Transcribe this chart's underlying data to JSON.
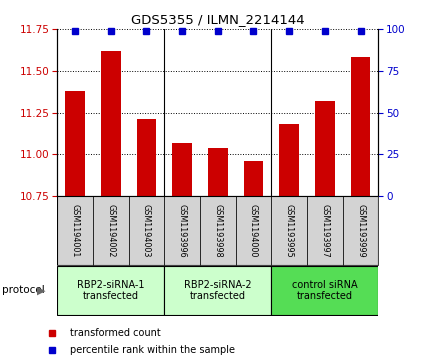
{
  "title": "GDS5355 / ILMN_2214144",
  "samples": [
    "GSM1194001",
    "GSM1194002",
    "GSM1194003",
    "GSM1193996",
    "GSM1193998",
    "GSM1194000",
    "GSM1193995",
    "GSM1193997",
    "GSM1193999"
  ],
  "bar_values": [
    11.38,
    11.62,
    11.21,
    11.07,
    11.04,
    10.96,
    11.18,
    11.32,
    11.58
  ],
  "percentile_values": [
    99,
    99,
    99,
    99,
    99,
    99,
    99,
    99,
    99
  ],
  "bar_color": "#cc0000",
  "dot_color": "#0000cc",
  "ylim_left": [
    10.75,
    11.75
  ],
  "ylim_right": [
    0,
    100
  ],
  "yticks_left": [
    10.75,
    11.0,
    11.25,
    11.5,
    11.75
  ],
  "yticks_right": [
    0,
    25,
    50,
    75,
    100
  ],
  "groups": [
    {
      "label": "RBP2-siRNA-1\ntransfected",
      "start": 0,
      "end": 3,
      "color": "#ccffcc"
    },
    {
      "label": "RBP2-siRNA-2\ntransfected",
      "start": 3,
      "end": 6,
      "color": "#ccffcc"
    },
    {
      "label": "control siRNA\ntransfected",
      "start": 6,
      "end": 9,
      "color": "#55dd55"
    }
  ],
  "legend_items": [
    {
      "label": "transformed count",
      "color": "#cc0000"
    },
    {
      "label": "percentile rank within the sample",
      "color": "#0000cc"
    }
  ],
  "protocol_label": "protocol",
  "sample_cell_color": "#d3d3d3",
  "plot_bg_color": "#ffffff",
  "grid_linestyle": ":"
}
